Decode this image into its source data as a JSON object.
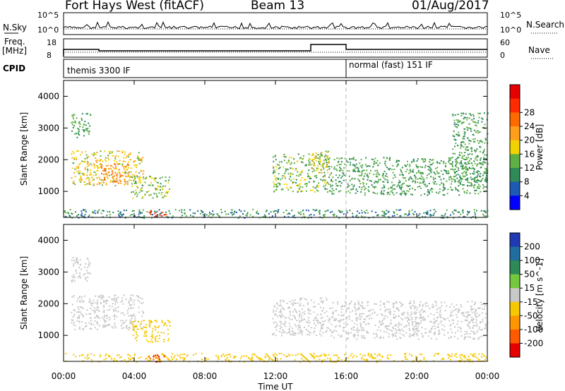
{
  "header": {
    "title": "Fort Hays West (fitACF)",
    "beam": "Beam 13",
    "date": "01/Aug/2017"
  },
  "top_panels": {
    "nsky_label": "N.Sky",
    "nsky_ticks": [
      "10^5",
      "10^0"
    ],
    "nsearch_ticks": [
      "10^5",
      "10^0"
    ],
    "nsearch_label": "N.Search",
    "freq_label": "Freq.",
    "freq_unit": "[MHz]",
    "freq_ticks": [
      "18",
      "8"
    ],
    "nave_ticks": [
      "60",
      "0"
    ],
    "nave_label": "Nave",
    "cpid_label": "CPID",
    "cpid_mode_1": "themis 3300 IF",
    "cpid_mode_2": "normal (fast) 151 IF"
  },
  "chart_data": [
    {
      "type": "heatmap",
      "parameter": "Power",
      "ylabel": "Slant Range [km]",
      "xlabel": "Time UT",
      "x_ticks": [
        "00:00",
        "04:00",
        "08:00",
        "12:00",
        "16:00",
        "20:00",
        "00:00"
      ],
      "y_ticks": [
        1000,
        2000,
        3000,
        4000
      ],
      "ylim": [
        180,
        4500
      ],
      "colorbar": {
        "label": "Power [dB]",
        "ticks": [
          4,
          8,
          12,
          16,
          20,
          24,
          28
        ],
        "colors": [
          "#0000ff",
          "#1c5ab4",
          "#2e8b57",
          "#5fb043",
          "#f2d200",
          "#ff9e1a",
          "#ff6a00",
          "#ff2a00",
          "#e60000"
        ]
      },
      "echo_regions": [
        {
          "t_start": 0.4,
          "t_end": 1.5,
          "r_start": 2700,
          "r_end": 3500,
          "level": 12
        },
        {
          "t_start": 0.4,
          "t_end": 4.5,
          "r_start": 1200,
          "r_end": 2300,
          "level": 18
        },
        {
          "t_start": 2.0,
          "t_end": 3.7,
          "r_start": 1250,
          "r_end": 1900,
          "level": 24
        },
        {
          "t_start": 3.8,
          "t_end": 6.0,
          "r_start": 800,
          "r_end": 1500,
          "level": 14
        },
        {
          "t_start": 11.8,
          "t_end": 15.0,
          "r_start": 1000,
          "r_end": 2200,
          "level": 14
        },
        {
          "t_start": 14.0,
          "t_end": 15.0,
          "r_start": 1600,
          "r_end": 2300,
          "level": 18
        },
        {
          "t_start": 15.0,
          "t_end": 24.0,
          "r_start": 900,
          "r_end": 2100,
          "level": 12
        },
        {
          "t_start": 22.0,
          "t_end": 24.0,
          "r_start": 1300,
          "r_end": 3500,
          "level": 12
        },
        {
          "t_start": 0.0,
          "t_end": 24.0,
          "r_start": 180,
          "r_end": 450,
          "level": 10
        },
        {
          "t_start": 4.8,
          "t_end": 5.8,
          "r_start": 180,
          "r_end": 400,
          "level": 28
        }
      ]
    },
    {
      "type": "heatmap",
      "parameter": "Velocity",
      "ylabel": "Slant Range [km]",
      "xlabel": "Time UT",
      "x_ticks": [
        "00:00",
        "04:00",
        "08:00",
        "12:00",
        "16:00",
        "20:00",
        "00:00"
      ],
      "y_ticks": [
        1000,
        2000,
        3000,
        4000
      ],
      "ylim": [
        180,
        4500
      ],
      "colorbar": {
        "label": "Velocity [m s^-1]",
        "ticks": [
          200,
          100,
          50,
          15,
          -15,
          -50,
          -100,
          -200
        ],
        "colors": [
          "#1f3ab4",
          "#1f6e9e",
          "#2e8b57",
          "#73c83c",
          "#c8c8c8",
          "#f5c800",
          "#ff9600",
          "#ff5a00",
          "#e60000"
        ]
      },
      "echo_regions": [
        {
          "t_start": 0.4,
          "t_end": 1.5,
          "r_start": 2700,
          "r_end": 3500,
          "level": 0
        },
        {
          "t_start": 0.4,
          "t_end": 4.5,
          "r_start": 1200,
          "r_end": 2300,
          "level": 0
        },
        {
          "t_start": 3.8,
          "t_end": 6.0,
          "r_start": 800,
          "r_end": 1500,
          "level": -40
        },
        {
          "t_start": 11.8,
          "t_end": 15.0,
          "r_start": 1000,
          "r_end": 2200,
          "level": 0
        },
        {
          "t_start": 15.0,
          "t_end": 24.0,
          "r_start": 900,
          "r_end": 2100,
          "level": 0
        },
        {
          "t_start": 0.0,
          "t_end": 24.0,
          "r_start": 180,
          "r_end": 450,
          "level": -40
        },
        {
          "t_start": 4.8,
          "t_end": 5.8,
          "r_start": 180,
          "r_end": 400,
          "level": -200
        }
      ]
    }
  ]
}
